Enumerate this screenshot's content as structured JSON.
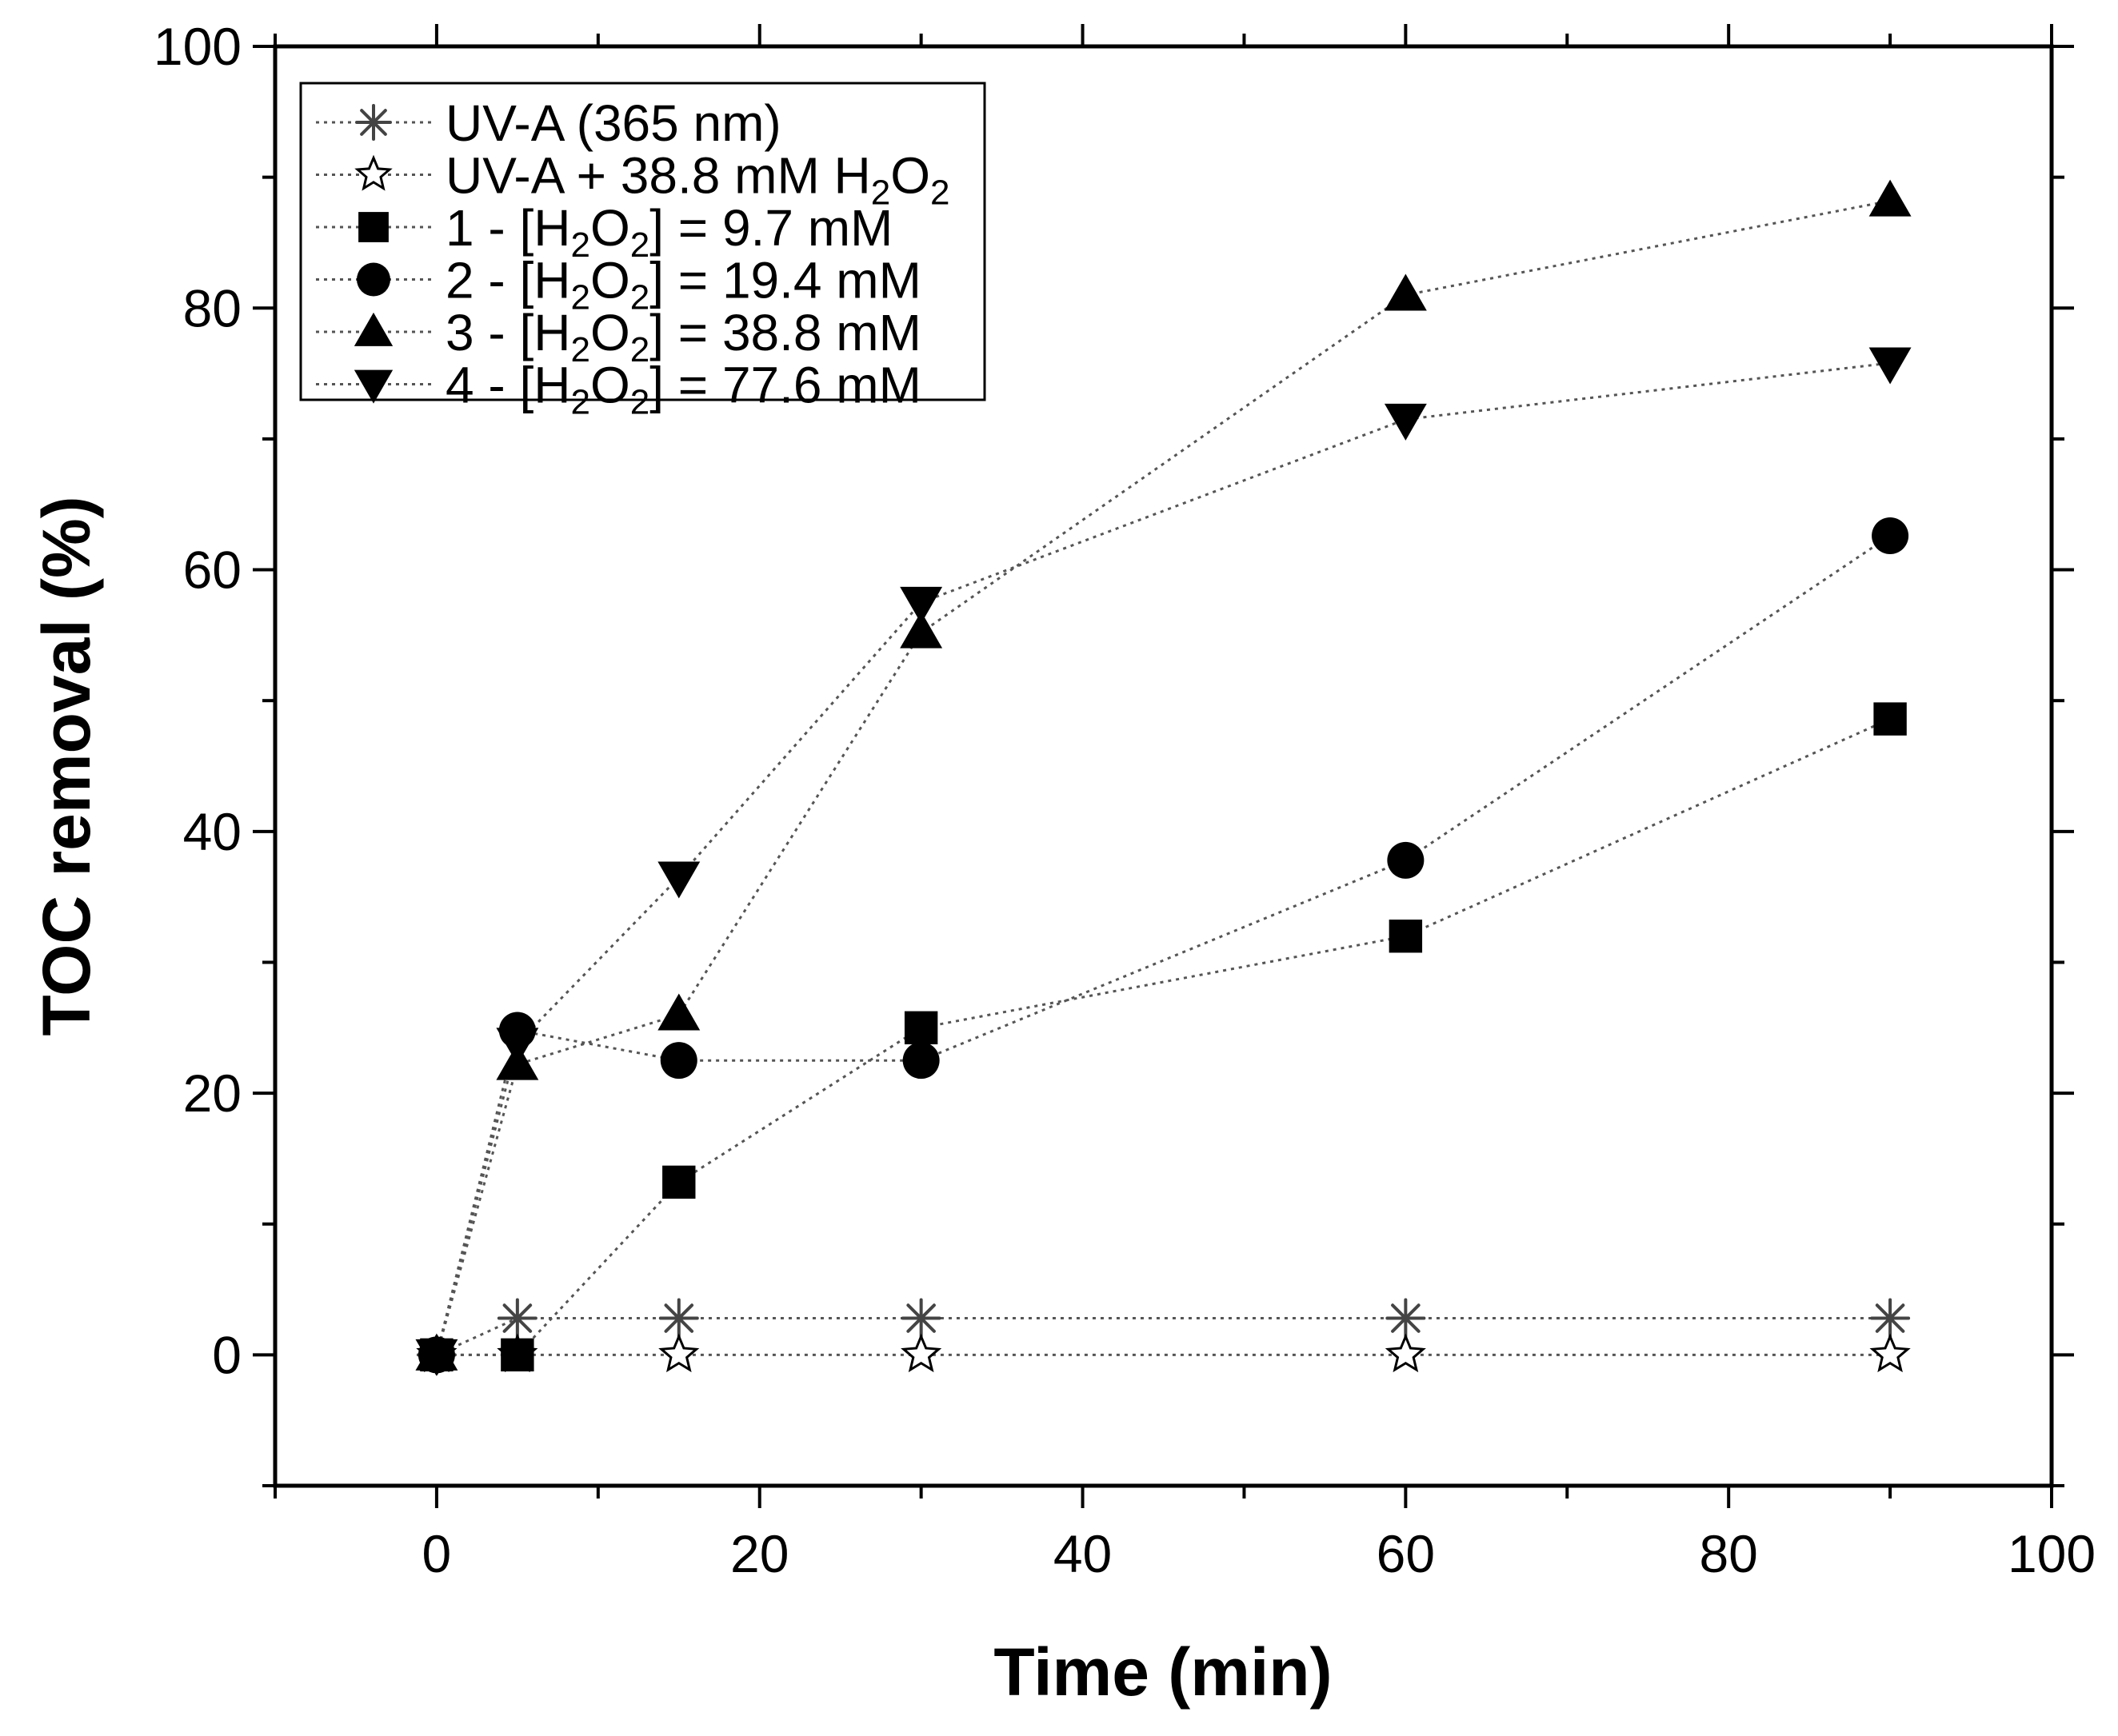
{
  "chart_data": {
    "type": "scatter",
    "title": "",
    "xlabel": "Time (min)",
    "ylabel": "TOC removal (%)",
    "xlim": [
      -10,
      100
    ],
    "ylim": [
      -10,
      100
    ],
    "x_ticks": [
      0,
      20,
      40,
      60,
      80,
      100
    ],
    "y_ticks": [
      0,
      20,
      40,
      60,
      80,
      100
    ],
    "x_tick_labels": [
      "0",
      "20",
      "40",
      "60",
      "80",
      "100"
    ],
    "y_tick_labels": [
      "0",
      "20",
      "40",
      "60",
      "80",
      "100"
    ],
    "grid": false,
    "legend_position": "top-left",
    "line_style": "dotted",
    "series": [
      {
        "key": "uva",
        "name": "UV-A (365 nm)",
        "marker": "asterisk",
        "legend": {
          "pre": "UV-A (365 nm)"
        },
        "x": [
          0,
          5,
          15,
          30,
          60,
          90
        ],
        "y": [
          0,
          2.8,
          2.8,
          2.8,
          2.8,
          2.8
        ]
      },
      {
        "key": "uva-h2o2",
        "name": "UV-A + 38.8 mM H2O2",
        "marker": "star-open",
        "legend": {
          "pre": "UV-A + 38.8 mM H",
          "sub1": "2",
          "mid": "O",
          "sub2": "2",
          "post": ""
        },
        "x": [
          0,
          5,
          15,
          30,
          60,
          90
        ],
        "y": [
          0,
          0,
          0,
          0,
          0,
          0
        ]
      },
      {
        "key": "h2o2-9-7",
        "name": "1 - [H2O2] = 9.7 mM",
        "marker": "square",
        "legend": {
          "pre": "1 - [H",
          "sub1": "2",
          "mid": "O",
          "sub2": "2",
          "post": "] = 9.7 mM"
        },
        "x": [
          0,
          5,
          15,
          30,
          60,
          90
        ],
        "y": [
          0,
          0,
          13.2,
          25,
          32,
          48.6
        ]
      },
      {
        "key": "h2o2-19-4",
        "name": "2 - [H2O2] = 19.4 mM",
        "marker": "circle",
        "legend": {
          "pre": "2 - [H",
          "sub1": "2",
          "mid": "O",
          "sub2": "2",
          "post": "] = 19.4 mM"
        },
        "x": [
          0,
          5,
          15,
          30,
          60,
          90
        ],
        "y": [
          0,
          24.8,
          22.5,
          22.5,
          37.8,
          62.6
        ]
      },
      {
        "key": "h2o2-38-8",
        "name": "3 - [H2O2] = 38.8 mM",
        "marker": "triangle-up",
        "legend": {
          "pre": "3 - [H",
          "sub1": "2",
          "mid": "O",
          "sub2": "2",
          "post": "] = 38.8 mM"
        },
        "x": [
          0,
          5,
          15,
          30,
          60,
          90
        ],
        "y": [
          0,
          22.2,
          26,
          55.2,
          81,
          88.2
        ]
      },
      {
        "key": "h2o2-77-6",
        "name": "4 - [H2O2] = 77.6 mM",
        "marker": "triangle-down",
        "legend": {
          "pre": "4 - [H",
          "sub1": "2",
          "mid": "O",
          "sub2": "2",
          "post": "] = 77.6 mM"
        },
        "x": [
          0,
          5,
          15,
          30,
          60,
          90
        ],
        "y": [
          0,
          23.8,
          36.5,
          57.5,
          71.5,
          75.8
        ]
      }
    ]
  }
}
